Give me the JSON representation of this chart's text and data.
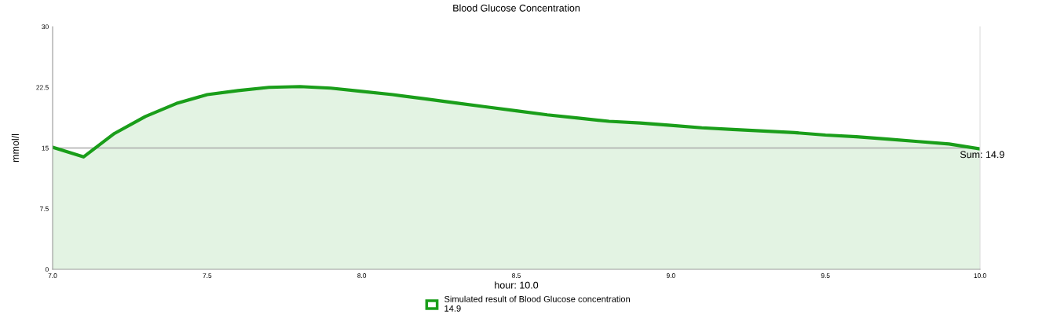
{
  "chart_data": {
    "type": "area",
    "title": "Blood Glucose Concentration",
    "xlabel": "hour: 10.0",
    "ylabel": "mmol/l",
    "x": [
      7.0,
      7.1,
      7.2,
      7.3,
      7.4,
      7.5,
      7.6,
      7.7,
      7.8,
      7.9,
      8.0,
      8.1,
      8.2,
      8.3,
      8.4,
      8.5,
      8.6,
      8.7,
      8.8,
      8.9,
      9.0,
      9.1,
      9.2,
      9.3,
      9.4,
      9.5,
      9.6,
      9.7,
      9.8,
      9.9,
      10.0
    ],
    "series": [
      {
        "name": "Simulated result of Blood Glucose concentration\n14.9",
        "color": "#1a9e1a",
        "values": [
          15.1,
          13.9,
          16.8,
          18.9,
          20.5,
          21.6,
          22.1,
          22.5,
          22.6,
          22.4,
          22.0,
          21.6,
          21.1,
          20.6,
          20.1,
          19.6,
          19.1,
          18.7,
          18.3,
          18.1,
          17.8,
          17.5,
          17.3,
          17.1,
          16.9,
          16.6,
          16.4,
          16.1,
          15.8,
          15.5,
          14.9
        ]
      }
    ],
    "xlim": [
      7.0,
      10.0
    ],
    "xticks": [
      {
        "value": 7.0,
        "label": "7.0"
      },
      7.5,
      {
        "value": 8.0,
        "label": "8.0"
      },
      8.5,
      {
        "value": 9.0,
        "label": "9.0"
      },
      9.5,
      {
        "value": 10.0,
        "label": "10.0"
      }
    ],
    "ylim": [
      0,
      30
    ],
    "yticks": [
      0,
      7.5,
      15,
      22.5,
      30
    ],
    "ref_lines": [
      {
        "axis": "y",
        "value": 15,
        "color": "#aaaaaa"
      }
    ],
    "annotations": [
      {
        "text": "Sum: 14.9",
        "x": 10.0,
        "y": 14.9
      }
    ],
    "legend": "bottom",
    "grid": false
  }
}
